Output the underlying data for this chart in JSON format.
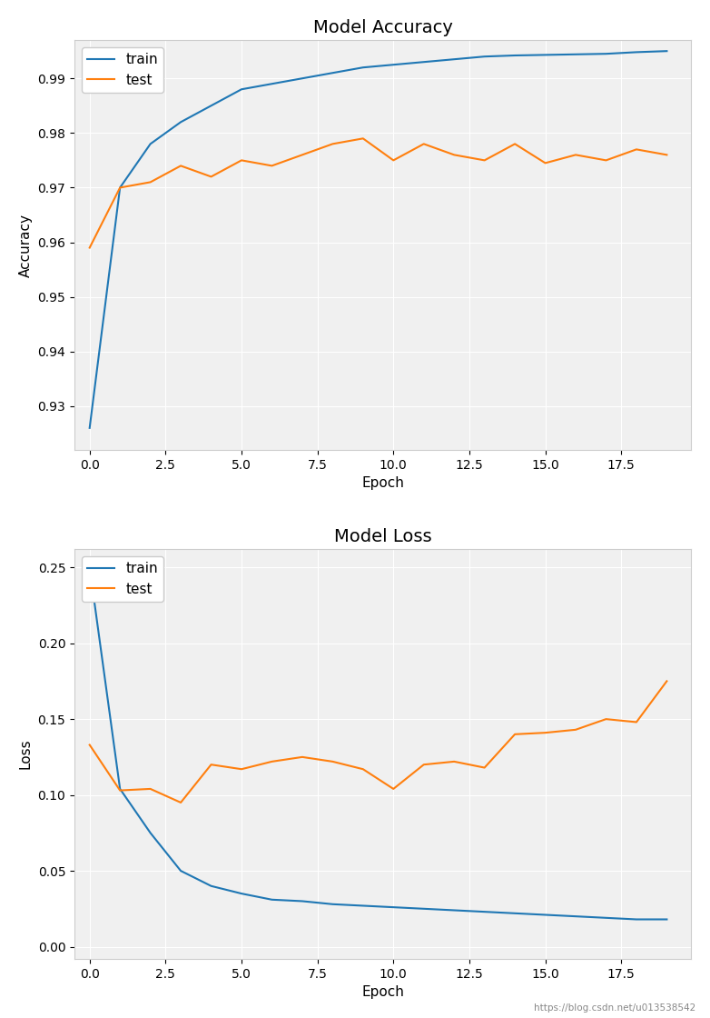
{
  "acc_train": [
    0.926,
    0.97,
    0.978,
    0.982,
    0.985,
    0.988,
    0.989,
    0.99,
    0.991,
    0.992,
    0.9925,
    0.993,
    0.9935,
    0.994,
    0.9942,
    0.9943,
    0.9944,
    0.9945,
    0.9948,
    0.995
  ],
  "acc_test": [
    0.959,
    0.97,
    0.971,
    0.974,
    0.972,
    0.975,
    0.974,
    0.976,
    0.978,
    0.979,
    0.975,
    0.978,
    0.976,
    0.975,
    0.978,
    0.9745,
    0.976,
    0.975,
    0.977,
    0.976
  ],
  "loss_train": [
    0.25,
    0.104,
    0.075,
    0.05,
    0.04,
    0.035,
    0.031,
    0.03,
    0.028,
    0.027,
    0.026,
    0.025,
    0.024,
    0.023,
    0.022,
    0.021,
    0.02,
    0.019,
    0.018,
    0.018
  ],
  "loss_test": [
    0.133,
    0.103,
    0.104,
    0.095,
    0.12,
    0.117,
    0.122,
    0.125,
    0.122,
    0.117,
    0.104,
    0.12,
    0.122,
    0.118,
    0.14,
    0.141,
    0.143,
    0.15,
    0.148,
    0.175
  ],
  "epochs": [
    0,
    1,
    2,
    3,
    4,
    5,
    6,
    7,
    8,
    9,
    10,
    11,
    12,
    13,
    14,
    15,
    16,
    17,
    18,
    19
  ],
  "color_train": "#1f77b4",
  "color_test": "#ff7f0e",
  "title_acc": "Model Accuracy",
  "title_loss": "Model Loss",
  "xlabel": "Epoch",
  "ylabel_acc": "Accuracy",
  "ylabel_loss": "Loss",
  "legend_train": "train",
  "legend_test": "test",
  "acc_ylim": [
    0.922,
    0.997
  ],
  "loss_ylim": [
    -0.008,
    0.262
  ],
  "xticks": [
    0.0,
    2.5,
    5.0,
    7.5,
    10.0,
    12.5,
    15.0,
    17.5
  ],
  "xtick_labels": [
    "0.0",
    "2.5",
    "5.0",
    "7.5",
    "10.0",
    "12.5",
    "15.0",
    "17.5"
  ],
  "xlim": [
    -0.5,
    19.8
  ],
  "watermark": "https://blog.csdn.net/u013538542",
  "bg_color": "#f0f0f0"
}
